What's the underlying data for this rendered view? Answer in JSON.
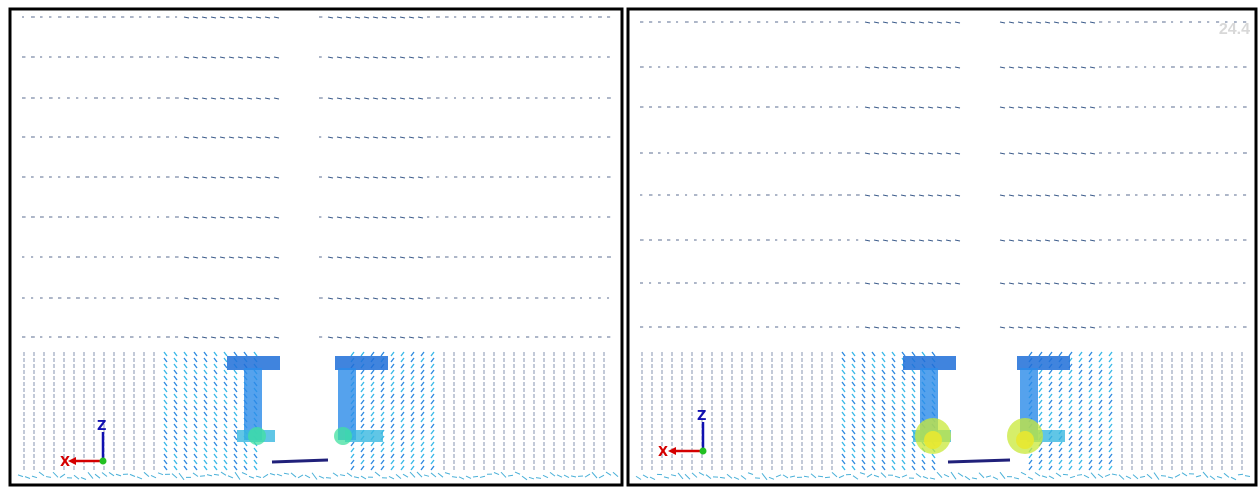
{
  "panels": [
    {
      "axes": {
        "x": "X",
        "z": "Z"
      }
    },
    {
      "axes": {
        "x": "X",
        "z": "Z"
      },
      "overlay": "24.4"
    }
  ]
}
